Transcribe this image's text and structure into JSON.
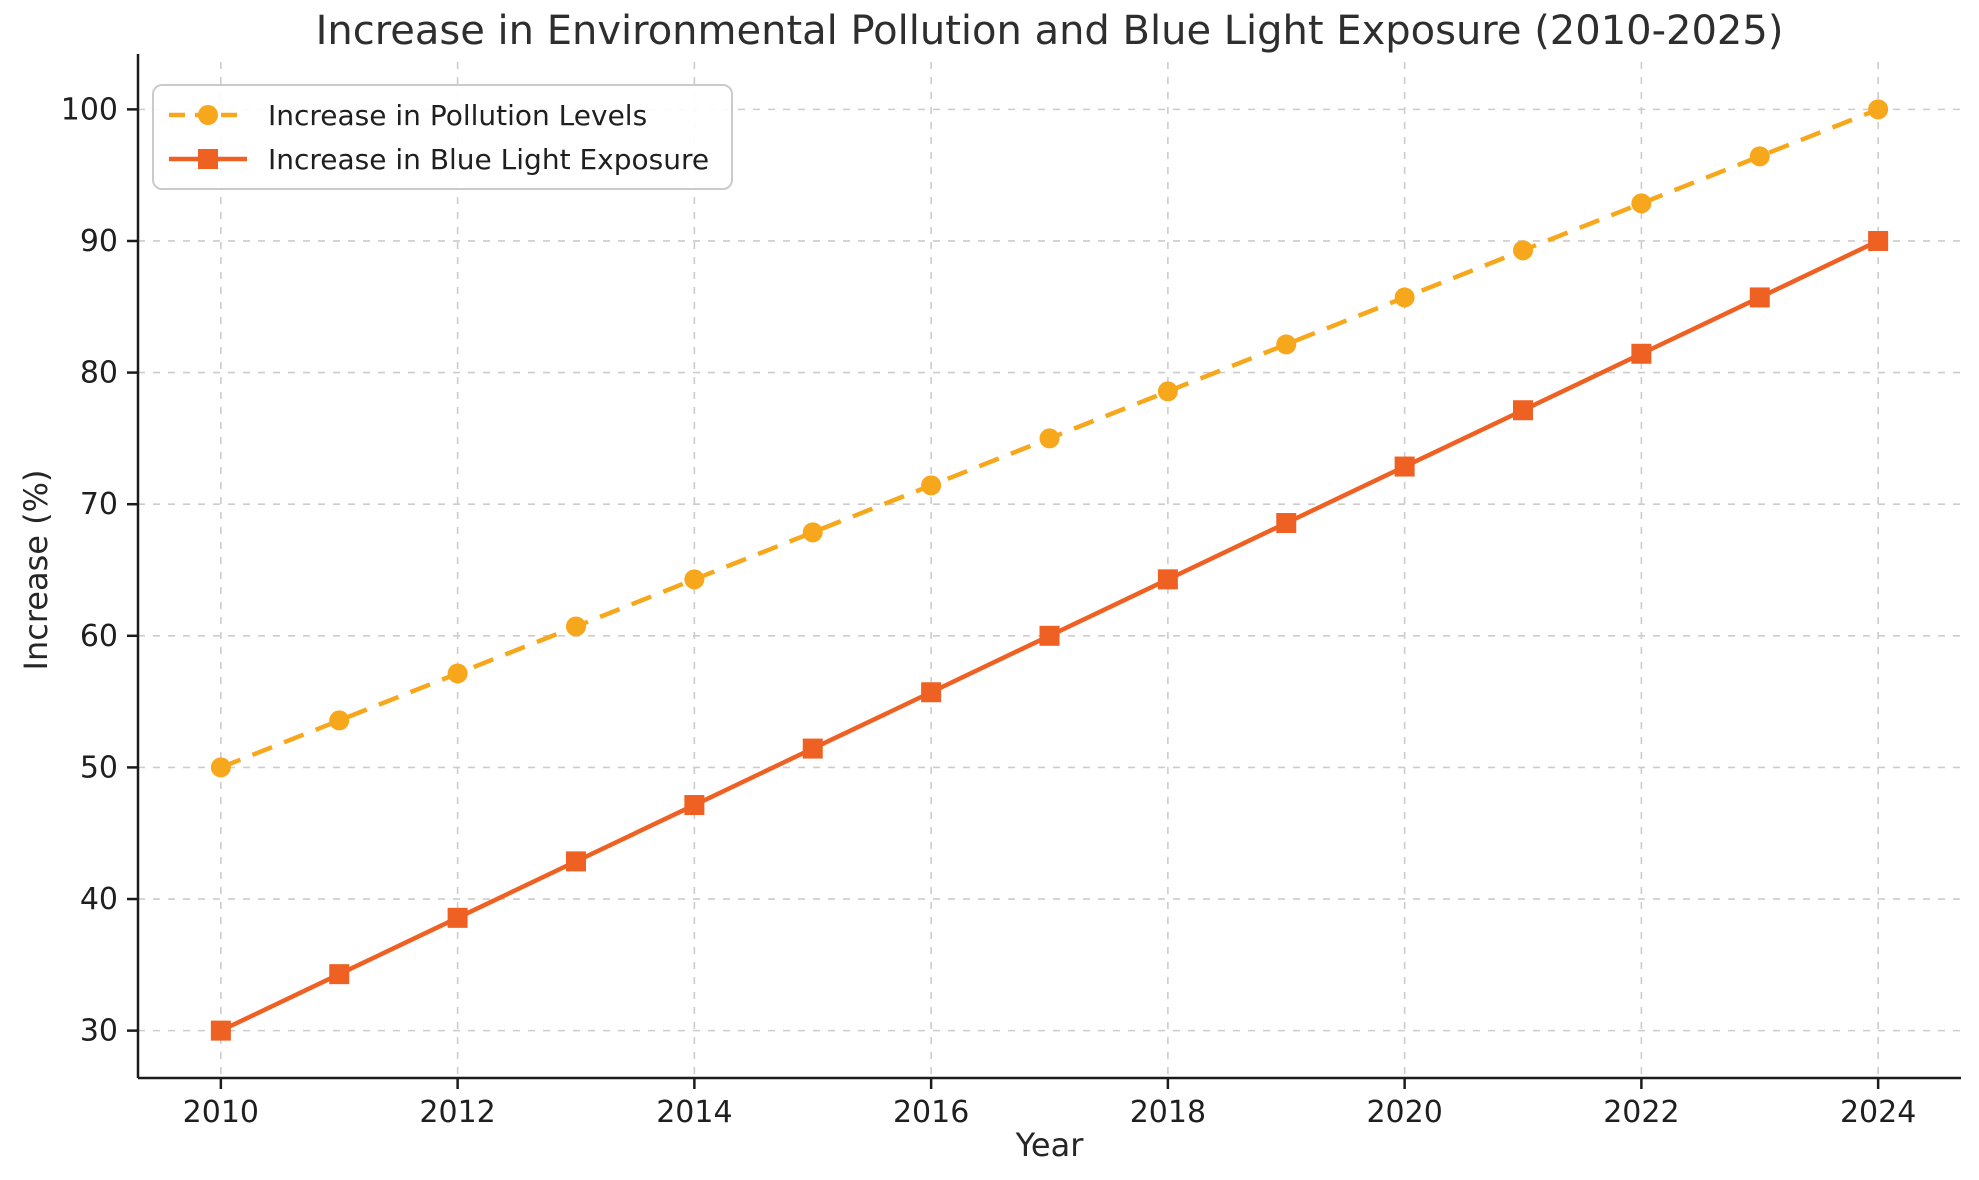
{
  "chart_data": {
    "type": "line",
    "title": "Increase in Environmental Pollution and Blue Light Exposure (2010-2025)",
    "xlabel": "Year",
    "ylabel": "Increase (%)",
    "x": [
      2010,
      2011,
      2012,
      2013,
      2014,
      2015,
      2016,
      2017,
      2018,
      2019,
      2020,
      2021,
      2022,
      2023,
      2024
    ],
    "series": [
      {
        "name": "Increase in Pollution Levels",
        "color": "#F7A71B",
        "line_style": "dashed",
        "marker": "circle",
        "values": [
          50.0,
          53.57,
          57.14,
          60.71,
          64.29,
          67.86,
          71.43,
          75.0,
          78.57,
          82.14,
          85.71,
          89.29,
          92.86,
          96.43,
          100.0
        ]
      },
      {
        "name": "Increase in Blue Light Exposure",
        "color": "#EE6123",
        "line_style": "solid",
        "marker": "square",
        "values": [
          30.0,
          34.29,
          38.57,
          42.86,
          47.14,
          51.43,
          55.71,
          60.0,
          64.29,
          68.57,
          72.86,
          77.14,
          81.43,
          85.71,
          90.0
        ]
      }
    ],
    "xticks": [
      2010,
      2012,
      2014,
      2016,
      2018,
      2020,
      2022,
      2024
    ],
    "yticks": [
      30,
      40,
      50,
      60,
      70,
      80,
      90,
      100
    ],
    "xlim": [
      2009.3,
      2024.7
    ],
    "ylim": [
      26.4,
      103.6
    ],
    "grid": true,
    "grid_style": "dashed",
    "grid_color": "#cccccc",
    "spine_color": "#1c1c1c",
    "legend_position": "upper left",
    "background": "#ffffff"
  }
}
